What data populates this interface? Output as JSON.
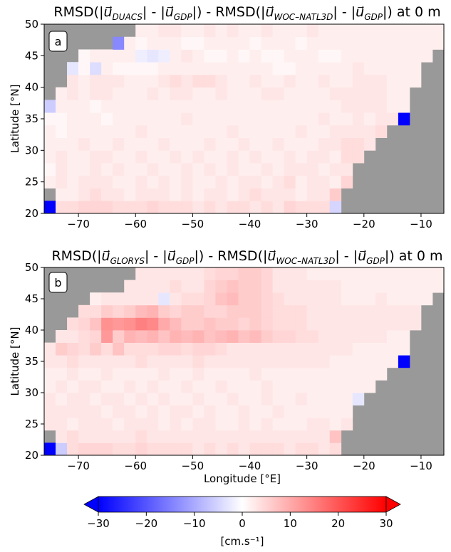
{
  "figure": {
    "colorbar": {
      "label": "[cm.s⁻¹]",
      "ticks": [
        "−30",
        "−20",
        "−10",
        "0",
        "10",
        "20",
        "30"
      ],
      "range": [
        -30,
        30
      ],
      "colormap": "bwr",
      "extend": "both",
      "colors": {
        "negative": "#0000ff",
        "zero": "#ffffff",
        "positive": "#ff0000"
      }
    }
  },
  "chart_data": [
    {
      "type": "heatmap",
      "panel_label": "a",
      "title": {
        "a": "RMSD(|",
        "b": "DUACS",
        "c": "| - |",
        "d": "GDP",
        "e": "|) - RMSD(|",
        "f": "WOC–NATL3D",
        "g": "| - |",
        "h": "GDP",
        "i": "|) at 0 m",
        "vec": "u⃗"
      },
      "xlabel": "",
      "ylabel": "Latitude [°N]",
      "xlim": [
        -76,
        -6
      ],
      "ylim": [
        20,
        50
      ],
      "xticks": [
        "−70",
        "−60",
        "−50",
        "−40",
        "−30",
        "−20",
        "−10"
      ],
      "yticks": [
        "20",
        "25",
        "30",
        "35",
        "40",
        "45",
        "50"
      ],
      "grid": false,
      "cell_size_deg": 2,
      "rows_south_to_north": [
        [
          -30,
          4,
          4,
          5,
          5,
          5,
          4,
          4,
          4,
          5,
          4,
          4,
          4,
          3,
          4,
          3,
          4,
          4,
          3,
          4,
          3,
          5,
          4,
          4,
          4,
          -5,
          null,
          null,
          null,
          null,
          null,
          null,
          null,
          null,
          null
        ],
        [
          null,
          2,
          2,
          3,
          4,
          3,
          3,
          2,
          3,
          3,
          3,
          2,
          3,
          2,
          3,
          3,
          2,
          3,
          4,
          3,
          3,
          3,
          2,
          3,
          3,
          6,
          null,
          null,
          null,
          null,
          null,
          null,
          null,
          null,
          null
        ],
        [
          2,
          3,
          2,
          3,
          3,
          3,
          2,
          2,
          3,
          2,
          3,
          2,
          3,
          2,
          2,
          3,
          2,
          3,
          3,
          2,
          3,
          4,
          2,
          3,
          3,
          2,
          5,
          null,
          null,
          null,
          null,
          null,
          null,
          null,
          null
        ],
        [
          1,
          3,
          2,
          2,
          3,
          2,
          3,
          2,
          2,
          3,
          2,
          2,
          3,
          2,
          3,
          2,
          3,
          2,
          2,
          3,
          2,
          3,
          3,
          3,
          2,
          3,
          3,
          null,
          null,
          null,
          null,
          null,
          null,
          null,
          null
        ],
        [
          2,
          3,
          2,
          2,
          3,
          3,
          2,
          2,
          3,
          2,
          2,
          3,
          2,
          3,
          2,
          2,
          3,
          2,
          3,
          2,
          2,
          3,
          2,
          3,
          3,
          2,
          4,
          4,
          null,
          null,
          null,
          null,
          null,
          null,
          null
        ],
        [
          2,
          2,
          2,
          3,
          2,
          2,
          3,
          2,
          2,
          2,
          3,
          2,
          2,
          2,
          3,
          2,
          2,
          3,
          2,
          2,
          3,
          2,
          2,
          2,
          3,
          3,
          4,
          4,
          3,
          null,
          null,
          null,
          null,
          null,
          null
        ],
        [
          2,
          1,
          2,
          2,
          2,
          2,
          2,
          2,
          3,
          2,
          2,
          2,
          2,
          2,
          2,
          2,
          3,
          2,
          2,
          2,
          2,
          2,
          3,
          2,
          2,
          3,
          3,
          3,
          3,
          4,
          null,
          null,
          null,
          null,
          null
        ],
        [
          1,
          1,
          2,
          2,
          2,
          1,
          2,
          2,
          2,
          2,
          2,
          2,
          3,
          2,
          2,
          2,
          2,
          2,
          2,
          2,
          2,
          2,
          2,
          2,
          3,
          2,
          2,
          3,
          2,
          3,
          3,
          -30,
          null,
          null,
          null
        ],
        [
          -6,
          2,
          2,
          2,
          1,
          2,
          2,
          2,
          2,
          2,
          2,
          2,
          2,
          2,
          2,
          2,
          2,
          2,
          2,
          2,
          2,
          2,
          2,
          2,
          2,
          2,
          3,
          3,
          3,
          3,
          2,
          2,
          null,
          null,
          null
        ],
        [
          null,
          2,
          3,
          2,
          3,
          3,
          2,
          2,
          2,
          3,
          2,
          3,
          3,
          2,
          2,
          3,
          2,
          2,
          2,
          3,
          3,
          2,
          2,
          2,
          2,
          3,
          3,
          3,
          3,
          3,
          2,
          2,
          null,
          null,
          null
        ],
        [
          null,
          null,
          3,
          2,
          3,
          3,
          3,
          2,
          2,
          2,
          3,
          4,
          3,
          4,
          4,
          3,
          2,
          2,
          3,
          2,
          2,
          3,
          2,
          2,
          3,
          2,
          2,
          3,
          3,
          3,
          2,
          2,
          2,
          null,
          null
        ],
        [
          null,
          null,
          -3,
          1,
          -4,
          2,
          1,
          1,
          1,
          1,
          2,
          2,
          2,
          2,
          2,
          2,
          2,
          2,
          2,
          2,
          1,
          1,
          2,
          2,
          2,
          2,
          2,
          3,
          2,
          2,
          2,
          2,
          2,
          null,
          null
        ],
        [
          null,
          null,
          null,
          1,
          2,
          2,
          2,
          2,
          -2,
          -3,
          -2,
          2,
          3,
          2,
          1,
          1,
          2,
          1,
          2,
          1,
          1,
          2,
          2,
          2,
          1,
          1,
          2,
          2,
          2,
          2,
          2,
          2,
          2,
          2,
          null
        ],
        [
          null,
          null,
          null,
          null,
          null,
          null,
          -14,
          2,
          1,
          2,
          2,
          2,
          1,
          1,
          2,
          2,
          2,
          2,
          1,
          2,
          2,
          2,
          1,
          2,
          2,
          2,
          2,
          2,
          2,
          2,
          2,
          2,
          2,
          2,
          2
        ],
        [
          null,
          null,
          null,
          null,
          null,
          null,
          null,
          null,
          2,
          2,
          3,
          3,
          2,
          2,
          3,
          2,
          3,
          2,
          2,
          3,
          2,
          2,
          2,
          3,
          2,
          2,
          2,
          2,
          2,
          2,
          2,
          2,
          2,
          2,
          2
        ],
        [
          null,
          null,
          null,
          null,
          null,
          null,
          null,
          null,
          null,
          2,
          3,
          2,
          3,
          3,
          4,
          4,
          2,
          3,
          -4,
          2,
          3,
          2,
          -3,
          2,
          3,
          2,
          2,
          3,
          2,
          2,
          2,
          2,
          3,
          4,
          -6
        ]
      ]
    },
    {
      "type": "heatmap",
      "panel_label": "b",
      "title": {
        "a": "RMSD(|",
        "b": "GLORYS",
        "c": "| - |",
        "d": "GDP",
        "e": "|) - RMSD(|",
        "f": "WOC–NATL3D",
        "g": "| - |",
        "h": "GDP",
        "i": "|) at 0 m",
        "vec": "u⃗"
      },
      "xlabel": "Longitude [°E]",
      "ylabel": "Latitude [°N]",
      "xlim": [
        -76,
        -6
      ],
      "ylim": [
        20,
        50
      ],
      "xticks": [
        "−70",
        "−60",
        "−50",
        "−40",
        "−30",
        "−20",
        "−10"
      ],
      "yticks": [
        "20",
        "25",
        "30",
        "35",
        "40",
        "45",
        "50"
      ],
      "grid": false,
      "cell_size_deg": 2,
      "rows_south_to_north": [
        [
          -30,
          -6,
          4,
          5,
          5,
          5,
          4,
          4,
          5,
          4,
          4,
          4,
          4,
          3,
          4,
          3,
          4,
          3,
          4,
          4,
          4,
          3,
          4,
          4,
          3,
          4,
          null,
          null,
          null,
          null,
          null,
          null,
          null,
          null,
          null
        ],
        [
          null,
          3,
          4,
          3,
          3,
          3,
          3,
          3,
          4,
          3,
          3,
          3,
          3,
          3,
          3,
          3,
          3,
          3,
          3,
          3,
          3,
          3,
          3,
          3,
          3,
          7,
          null,
          null,
          null,
          null,
          null,
          null,
          null,
          null,
          null
        ],
        [
          3,
          3,
          2,
          3,
          3,
          3,
          2,
          3,
          3,
          3,
          2,
          3,
          2,
          3,
          3,
          2,
          2,
          3,
          2,
          3,
          2,
          2,
          2,
          3,
          3,
          2,
          3,
          null,
          null,
          null,
          null,
          null,
          null,
          null,
          null
        ],
        [
          3,
          3,
          3,
          3,
          3,
          2,
          3,
          3,
          2,
          3,
          2,
          3,
          3,
          2,
          3,
          2,
          2,
          3,
          2,
          2,
          3,
          2,
          2,
          2,
          2,
          2,
          2,
          null,
          null,
          null,
          null,
          null,
          null,
          null,
          null
        ],
        [
          3,
          2,
          3,
          3,
          2,
          3,
          3,
          2,
          3,
          2,
          3,
          2,
          2,
          3,
          2,
          2,
          3,
          2,
          2,
          3,
          2,
          2,
          3,
          2,
          2,
          2,
          2,
          -3,
          null,
          null,
          null,
          null,
          null,
          null,
          null
        ],
        [
          2,
          3,
          2,
          3,
          3,
          2,
          2,
          3,
          2,
          3,
          2,
          2,
          3,
          2,
          2,
          3,
          2,
          2,
          2,
          3,
          2,
          2,
          2,
          2,
          2,
          2,
          2,
          2,
          2,
          null,
          null,
          null,
          null,
          null,
          null
        ],
        [
          2,
          2,
          3,
          2,
          2,
          3,
          2,
          2,
          2,
          2,
          3,
          2,
          2,
          3,
          2,
          2,
          2,
          2,
          3,
          2,
          2,
          2,
          2,
          2,
          2,
          2,
          2,
          2,
          2,
          2,
          null,
          null,
          null,
          null,
          null
        ],
        [
          3,
          3,
          4,
          3,
          3,
          3,
          3,
          3,
          4,
          3,
          3,
          3,
          3,
          4,
          3,
          3,
          3,
          3,
          3,
          3,
          3,
          3,
          3,
          3,
          3,
          2,
          2,
          2,
          2,
          2,
          2,
          -30,
          null,
          null,
          null
        ],
        [
          3,
          6,
          5,
          4,
          6,
          4,
          7,
          4,
          4,
          4,
          5,
          5,
          4,
          5,
          5,
          4,
          3,
          3,
          3,
          3,
          3,
          3,
          3,
          3,
          3,
          3,
          3,
          2,
          2,
          2,
          2,
          2,
          null,
          null,
          null
        ],
        [
          null,
          3,
          3,
          4,
          5,
          12,
          6,
          9,
          8,
          9,
          7,
          9,
          8,
          9,
          7,
          8,
          9,
          7,
          8,
          6,
          5,
          5,
          4,
          4,
          3,
          3,
          3,
          3,
          3,
          3,
          2,
          2,
          null,
          null,
          null
        ],
        [
          null,
          null,
          4,
          5,
          7,
          13,
          12,
          13,
          15,
          14,
          10,
          8,
          6,
          6,
          7,
          6,
          6,
          5,
          6,
          5,
          4,
          4,
          4,
          3,
          3,
          3,
          3,
          3,
          3,
          3,
          3,
          3,
          3,
          null,
          null
        ],
        [
          null,
          null,
          null,
          4,
          4,
          6,
          5,
          6,
          8,
          9,
          6,
          5,
          6,
          6,
          5,
          5,
          6,
          6,
          6,
          5,
          4,
          4,
          4,
          3,
          3,
          3,
          3,
          3,
          3,
          3,
          3,
          3,
          3,
          null,
          null
        ],
        [
          null,
          null,
          null,
          null,
          2,
          3,
          3,
          3,
          3,
          3,
          -3,
          3,
          4,
          4,
          5,
          7,
          8,
          6,
          6,
          5,
          4,
          3,
          3,
          3,
          3,
          3,
          2,
          2,
          2,
          3,
          2,
          2,
          2,
          2,
          null
        ],
        [
          null,
          null,
          null,
          null,
          null,
          null,
          null,
          3,
          3,
          3,
          3,
          4,
          3,
          3,
          5,
          6,
          7,
          6,
          6,
          5,
          3,
          3,
          3,
          3,
          3,
          3,
          2,
          2,
          2,
          2,
          2,
          2,
          2,
          2,
          2
        ],
        [
          null,
          null,
          null,
          null,
          null,
          null,
          null,
          null,
          3,
          3,
          3,
          3,
          3,
          3,
          4,
          5,
          5,
          6,
          6,
          5,
          3,
          3,
          3,
          2,
          2,
          2,
          2,
          2,
          2,
          2,
          2,
          2,
          2,
          2,
          2
        ],
        [
          null,
          null,
          null,
          null,
          null,
          null,
          null,
          null,
          null,
          3,
          3,
          3,
          3,
          3,
          3,
          4,
          4,
          9,
          5,
          4,
          3,
          3,
          3,
          3,
          3,
          3,
          3,
          2,
          2,
          2,
          2,
          2,
          2,
          2,
          -8
        ]
      ]
    }
  ]
}
